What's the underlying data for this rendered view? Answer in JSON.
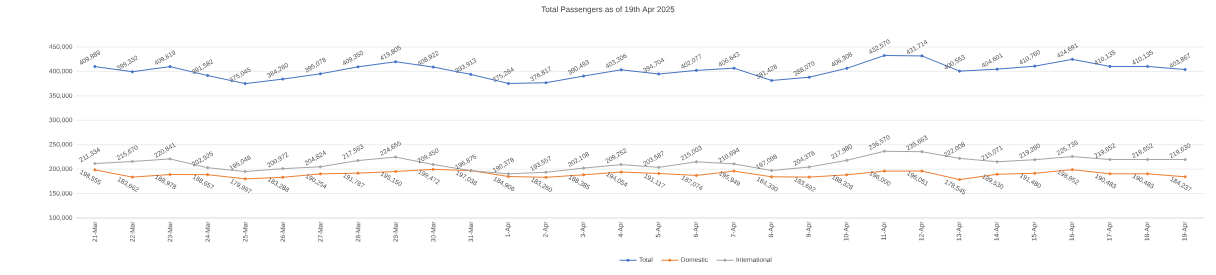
{
  "chart_data": {
    "type": "line",
    "title": "Total Passengers as of 19th Apr 2025",
    "categories": [
      "21-Mar",
      "22-Mar",
      "23-Mar",
      "24-Mar",
      "25-Mar",
      "26-Mar",
      "27-Mar",
      "28-Mar",
      "29-Mar",
      "30-Mar",
      "31-Mar",
      "1-Apr",
      "2-Apr",
      "3-Apr",
      "4-Apr",
      "5-Apr",
      "6-Apr",
      "7-Apr",
      "8-Apr",
      "9-Apr",
      "10-Apr",
      "11-Apr",
      "12-Apr",
      "13-Apr",
      "14-Apr",
      "15-Apr",
      "16-Apr",
      "17-Apr",
      "18-Apr",
      "19-Apr"
    ],
    "series": [
      {
        "name": "Total",
        "color": "#4472c4",
        "values": [
          409889,
          399332,
          409819,
          391582,
          375045,
          384260,
          395078,
          409350,
          419805,
          408922,
          393913,
          375284,
          376817,
          390493,
          403306,
          394704,
          402077,
          406643,
          381428,
          388070,
          406308,
          432570,
          431714,
          400553,
          404601,
          410760,
          424691,
          410135,
          410135,
          403867
        ],
        "value_labels": [
          "409,889",
          "399,332",
          "409,819",
          "391,582",
          "375,045",
          "384,260",
          "395,078",
          "409,350",
          "419,805",
          "408,922",
          "393,913",
          "375,284",
          "376,817",
          "390,493",
          "403,306",
          "394,704",
          "402,077",
          "406,643",
          "381,428",
          "388,070",
          "406,308",
          "432,570",
          "431,714",
          "400,553",
          "404,601",
          "410,760",
          "424,691",
          "410,135",
          "410,135",
          "403,867"
        ]
      },
      {
        "name": "Domestic",
        "color": "#ed7d31",
        "values": [
          198555,
          183662,
          188978,
          188657,
          179997,
          183288,
          190254,
          191787,
          195150,
          199472,
          197038,
          184906,
          183260,
          188385,
          194054,
          191117,
          187074,
          195949,
          184330,
          183692,
          188328,
          196000,
          196051,
          178545,
          189530,
          191480,
          198952,
          190483,
          190483,
          184237
        ],
        "value_labels": [
          "198,555",
          "183,662",
          "188,978",
          "188,657",
          "179,997",
          "183,288",
          "190,254",
          "191,787",
          "195,150",
          "199,472",
          "197,038",
          "184,906",
          "183,260",
          "188,385",
          "194,054",
          "191,117",
          "187,074",
          "195,949",
          "184,330",
          "183,692",
          "188,328",
          "196,000",
          "196,051",
          "178,545",
          "189,530",
          "191,480",
          "198,952",
          "190,483",
          "190,483",
          "184,237"
        ]
      },
      {
        "name": "International",
        "color": "#a5a5a5",
        "values": [
          211334,
          215670,
          220841,
          202925,
          195048,
          200972,
          204824,
          217563,
          224655,
          209450,
          196875,
          190378,
          193557,
          202108,
          209252,
          203587,
          215003,
          210694,
          197098,
          204378,
          217980,
          236570,
          235663,
          222008,
          215071,
          219280,
          225739,
          219652,
          219652,
          219630
        ],
        "value_labels": [
          "211,334",
          "215,670",
          "220,841",
          "202,925",
          "195,048",
          "200,972",
          "204,824",
          "217,563",
          "224,655",
          "209,450",
          "196,875",
          "190,378",
          "193,557",
          "202,108",
          "209,252",
          "203,587",
          "215,003",
          "210,694",
          "197,098",
          "204,378",
          "217,980",
          "236,570",
          "235,663",
          "222,008",
          "215,071",
          "219,280",
          "225,739",
          "219,652",
          "219,652",
          "219,630"
        ]
      }
    ],
    "ylim": [
      100000,
      450000
    ],
    "yticks": [
      {
        "value": 100000,
        "label": "100,000"
      },
      {
        "value": 150000,
        "label": "150,000"
      },
      {
        "value": 200000,
        "label": "200,000"
      },
      {
        "value": 250000,
        "label": "250,000"
      },
      {
        "value": 300000,
        "label": "300,000"
      },
      {
        "value": 350000,
        "label": "350,000"
      },
      {
        "value": 400000,
        "label": "400,000"
      },
      {
        "value": 450000,
        "label": "450,000"
      }
    ],
    "grid": "y",
    "legend": "bottom",
    "marker": "circle",
    "line_style": "solid"
  }
}
